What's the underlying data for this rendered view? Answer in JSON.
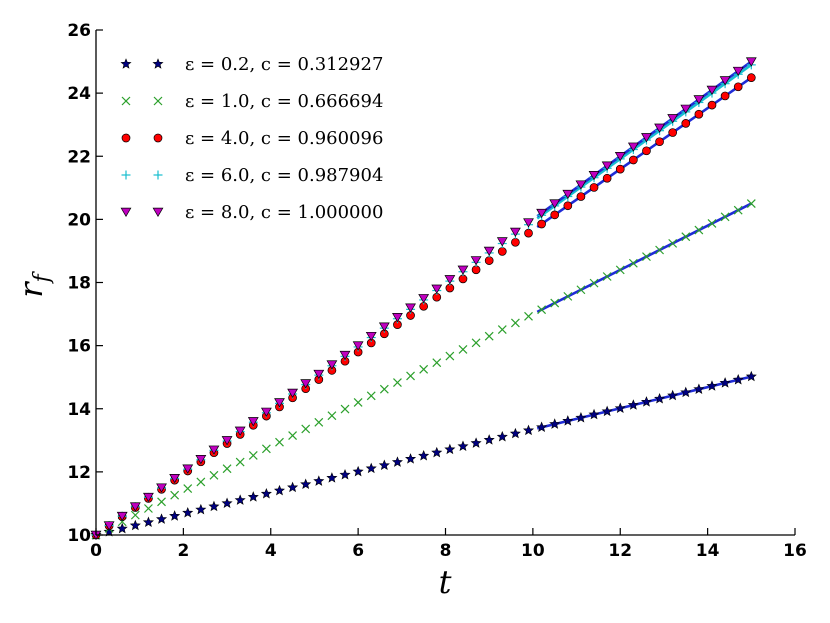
{
  "chart_data": {
    "type": "scatter",
    "xlabel": "t",
    "ylabel": "r_f",
    "ylabel_main": "r",
    "ylabel_sub": "f",
    "xlim": [
      0,
      16
    ],
    "ylim": [
      10,
      26
    ],
    "xticks": [
      "0",
      "2",
      "4",
      "6",
      "8",
      "10",
      "12",
      "14",
      "16"
    ],
    "yticks": [
      "10",
      "12",
      "14",
      "16",
      "18",
      "20",
      "22",
      "24",
      "26"
    ],
    "grid": false,
    "legend_position": "top-left",
    "t_step": 0.3,
    "series": [
      {
        "name": "ε = 0.2, c = 0.312927",
        "epsilon": "0.2",
        "c": "0.312927",
        "marker": "star",
        "color": "#000080",
        "r0": 10,
        "slope": 0.3346,
        "fit_color": "#1f2bd6"
      },
      {
        "name": "ε = 1.0, c = 0.666694",
        "epsilon": "1.0",
        "c": "0.666694",
        "marker": "x",
        "color": "#2ca02c",
        "r0": 10,
        "slope": 0.7,
        "fit_color": "#1f2bd6"
      },
      {
        "name": "ε = 4.0, c = 0.960096",
        "epsilon": "4.0",
        "c": "0.960096",
        "marker": "circle",
        "color": "#ff0000",
        "r0": 10,
        "slope": 0.966,
        "fit_color": "#1f2bd6"
      },
      {
        "name": "ε = 6.0, c = 0.987904",
        "epsilon": "6.0",
        "c": "0.987904",
        "marker": "plus",
        "color": "#17becf",
        "r0": 10,
        "slope": 0.993,
        "fit_color": "#17becf"
      },
      {
        "name": "ε = 8.0, c = 1.000000",
        "epsilon": "8.0",
        "c": "1.000000",
        "marker": "triangle-down",
        "color": "#bf00bf",
        "r0": 10,
        "slope": 1.0,
        "fit_color": "#1f2bd6"
      }
    ],
    "fit_range": [
      10.1,
      15
    ]
  }
}
